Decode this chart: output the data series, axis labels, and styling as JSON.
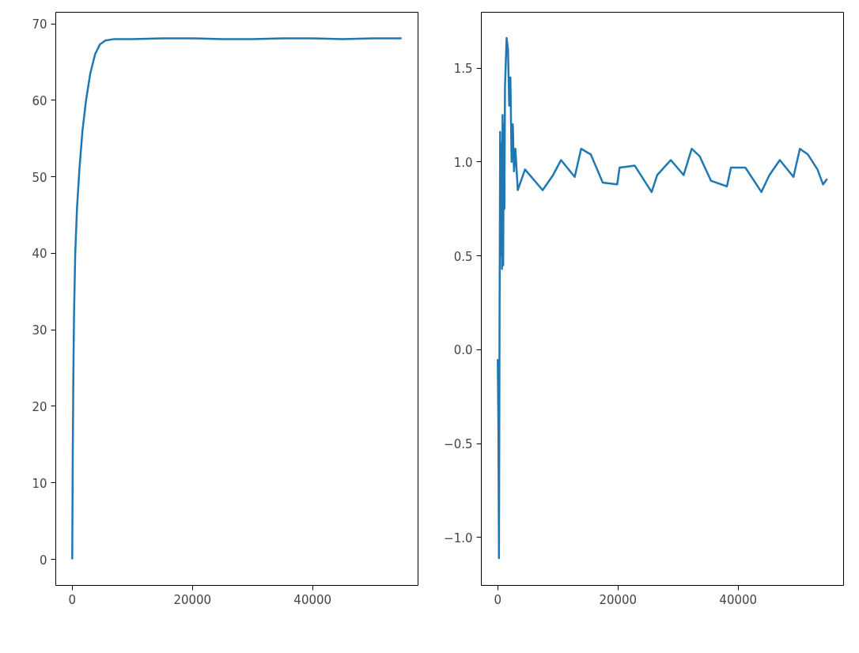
{
  "chart_data": [
    {
      "type": "line",
      "x": [
        0,
        50,
        100,
        200,
        300,
        500,
        800,
        1200,
        1700,
        2300,
        3000,
        3800,
        4600,
        5500,
        7000,
        10000,
        15000,
        20000,
        25000,
        30000,
        35000,
        40000,
        45000,
        50000,
        54800
      ],
      "series": [
        {
          "color": "#1f77b4",
          "values": [
            0,
            8,
            15,
            25,
            32,
            40,
            46,
            51,
            56,
            60,
            63.5,
            66,
            67.3,
            67.8,
            68,
            68,
            68.1,
            68.1,
            68,
            68,
            68.1,
            68.1,
            68,
            68.1,
            68.1
          ]
        }
      ],
      "xlim": [
        -2740,
        57540
      ],
      "ylim": [
        -3.4,
        71.5
      ],
      "xticks": [
        0,
        20000,
        40000
      ],
      "yticks": [
        0,
        10,
        20,
        30,
        40,
        50,
        60,
        70
      ]
    },
    {
      "type": "line",
      "x": [
        0,
        100,
        200,
        300,
        400,
        500,
        600,
        700,
        800,
        900,
        1000,
        1100,
        1200,
        1470,
        1700,
        1900,
        2100,
        2300,
        2500,
        2700,
        2930,
        3330,
        4530,
        7470,
        9200,
        10530,
        12800,
        13870,
        15470,
        16270,
        17470,
        19870,
        20270,
        22800,
        25600,
        26530,
        28800,
        30930,
        32270,
        33600,
        35470,
        38130,
        38800,
        41200,
        43870,
        45200,
        46930,
        49200,
        50270,
        51600,
        53200,
        54130,
        54800
      ],
      "series": [
        {
          "color": "#1f77b4",
          "values": [
            -0.05,
            -0.4,
            -1.11,
            0.2,
            1.16,
            0.5,
            1.1,
            0.43,
            1.25,
            0.45,
            1.2,
            0.75,
            1.4,
            1.66,
            1.6,
            1.3,
            1.45,
            1.0,
            1.2,
            0.95,
            1.07,
            0.85,
            0.96,
            0.85,
            0.93,
            1.01,
            0.92,
            1.07,
            1.04,
            0.98,
            0.89,
            0.88,
            0.97,
            0.98,
            0.84,
            0.93,
            1.01,
            0.93,
            1.07,
            1.03,
            0.9,
            0.87,
            0.97,
            0.97,
            0.84,
            0.93,
            1.01,
            0.92,
            1.07,
            1.04,
            0.96,
            0.88,
            0.91
          ]
        }
      ],
      "xlim": [
        -2740,
        57540
      ],
      "ylim": [
        -1.255,
        1.797
      ],
      "xticks": [
        0,
        20000,
        40000
      ],
      "yticks": [
        {
          "value": -1.0,
          "label": "−1.0"
        },
        {
          "value": -0.5,
          "label": "−0.5"
        },
        {
          "value": 0,
          "label": "0.0"
        },
        0.5,
        {
          "value": 1,
          "label": "1.0"
        },
        1.5
      ]
    }
  ]
}
